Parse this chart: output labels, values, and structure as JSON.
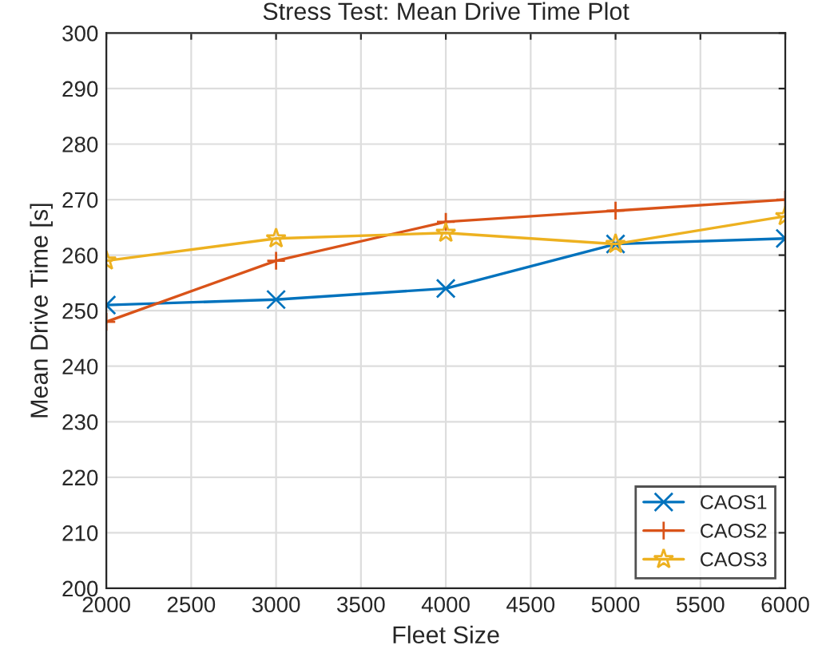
{
  "chart_data": {
    "type": "line",
    "title": "Stress Test: Mean Drive Time Plot",
    "xlabel": "Fleet Size",
    "ylabel": "Mean Drive Time [s]",
    "x": [
      2000,
      3000,
      4000,
      5000,
      6000
    ],
    "series": [
      {
        "name": "CAOS1",
        "color": "#0072bd",
        "marker": "cross",
        "values": [
          251,
          252,
          254,
          262,
          263
        ]
      },
      {
        "name": "CAOS2",
        "color": "#d95319",
        "marker": "plus",
        "values": [
          248,
          259,
          266,
          268,
          270
        ]
      },
      {
        "name": "CAOS3",
        "color": "#edb120",
        "marker": "star",
        "values": [
          259,
          263,
          264,
          262,
          267
        ]
      }
    ],
    "xlim": [
      2000,
      6000
    ],
    "xticks": [
      2000,
      2500,
      3000,
      3500,
      4000,
      4500,
      5000,
      5500,
      6000
    ],
    "ylim": [
      200,
      300
    ],
    "yticks": [
      200,
      210,
      220,
      230,
      240,
      250,
      260,
      270,
      280,
      290,
      300
    ],
    "grid": true,
    "legend": "bottom right",
    "line_style": "solid"
  }
}
